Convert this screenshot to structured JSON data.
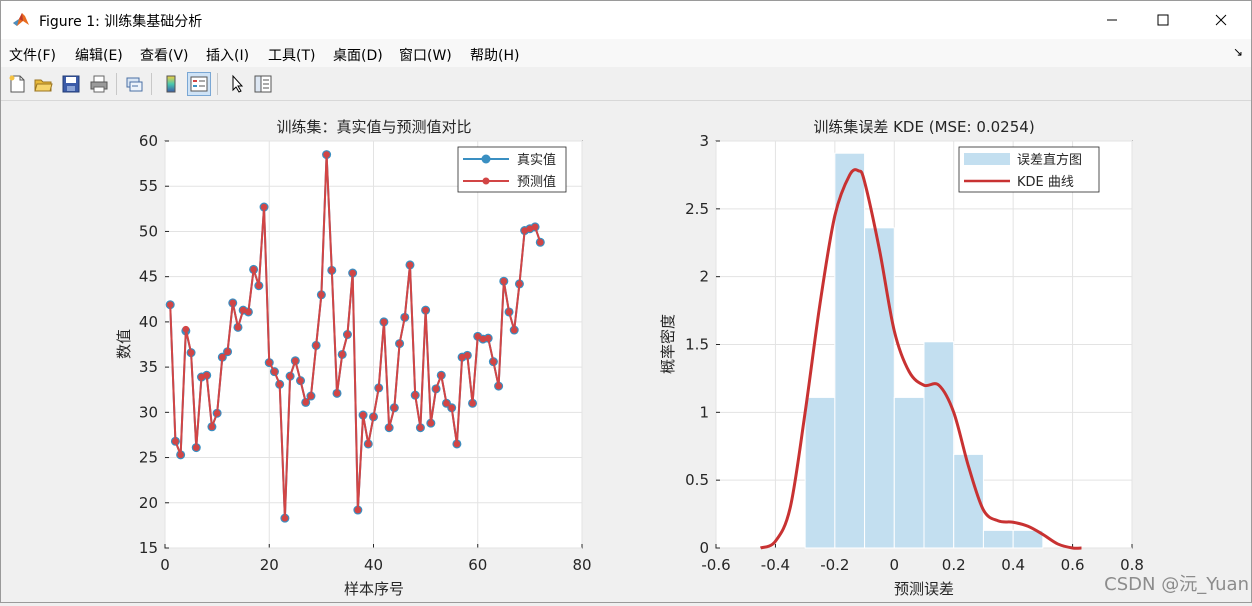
{
  "window": {
    "title": "Figure 1: 训练集基础分析",
    "minimize_glyph": "—",
    "maximize_glyph": "☐",
    "close_glyph": "✕"
  },
  "menu": {
    "items": [
      "文件(F)",
      "编辑(E)",
      "查看(V)",
      "插入(I)",
      "工具(T)",
      "桌面(D)",
      "窗口(W)",
      "帮助(H)"
    ],
    "arrow": "↘"
  },
  "toolbar": {
    "icons": [
      "new-figure-icon",
      "open-file-icon",
      "save-icon",
      "print-icon",
      "link-icon",
      "colorbar-icon",
      "legend-icon",
      "pointer-icon",
      "property-inspector-icon"
    ]
  },
  "colors": {
    "true_series": "#3a8fc2",
    "pred_series": "#d24545",
    "hist_fill": "#c3dff0",
    "kde_line": "#c83232"
  },
  "watermark": "CSDN @沅_Yuan",
  "chart_data": [
    {
      "type": "line",
      "title": "训练集：真实值与预测值对比",
      "xlabel": "样本序号",
      "ylabel": "数值",
      "xlim": [
        0,
        80
      ],
      "ylim": [
        15,
        60
      ],
      "xticks": [
        0,
        20,
        40,
        60,
        80
      ],
      "yticks": [
        15,
        20,
        25,
        30,
        35,
        40,
        45,
        50,
        55,
        60
      ],
      "grid": true,
      "legend_position": "top-right",
      "x": [
        1,
        2,
        3,
        4,
        5,
        6,
        7,
        8,
        9,
        10,
        11,
        12,
        13,
        14,
        15,
        16,
        17,
        18,
        19,
        20,
        21,
        22,
        23,
        24,
        25,
        26,
        27,
        28,
        29,
        30,
        31,
        32,
        33,
        34,
        35,
        36,
        37,
        38,
        39,
        40,
        41,
        42,
        43,
        44,
        45,
        46,
        47,
        48,
        49,
        50,
        51,
        52,
        53,
        54,
        55,
        56,
        57,
        58,
        59,
        60,
        61,
        62,
        63,
        64,
        65,
        66,
        67,
        68,
        69,
        70,
        71,
        72
      ],
      "series": [
        {
          "name": "真实值",
          "values": [
            41.9,
            26.8,
            25.3,
            39.0,
            36.6,
            26.1,
            33.9,
            34.1,
            28.4,
            29.9,
            36.1,
            36.7,
            42.1,
            39.4,
            41.3,
            41.1,
            45.8,
            44.0,
            52.7,
            35.5,
            34.5,
            33.1,
            18.3,
            34.0,
            35.7,
            33.5,
            31.1,
            31.8,
            37.4,
            43.0,
            58.5,
            45.7,
            32.1,
            36.4,
            38.6,
            45.4,
            19.2,
            29.7,
            26.5,
            29.5,
            32.7,
            40.0,
            28.3,
            30.5,
            37.6,
            40.5,
            46.3,
            31.9,
            28.3,
            41.3,
            28.8,
            32.6,
            34.1,
            31.0,
            30.5,
            26.5,
            36.1,
            36.3,
            31.0,
            38.4,
            38.1,
            38.2,
            35.6,
            32.9,
            44.5,
            41.1,
            39.1,
            44.2,
            50.1,
            50.3,
            50.5,
            48.8
          ]
        },
        {
          "name": "预测值",
          "values": [
            41.9,
            26.8,
            25.3,
            39.2,
            36.6,
            26.1,
            33.9,
            34.1,
            28.4,
            29.9,
            36.1,
            36.7,
            42.1,
            39.4,
            41.3,
            41.1,
            45.8,
            44.0,
            52.7,
            35.5,
            34.5,
            33.1,
            18.3,
            34.0,
            35.7,
            33.5,
            31.1,
            31.8,
            37.4,
            43.0,
            58.5,
            45.7,
            32.1,
            36.4,
            38.6,
            45.4,
            19.2,
            29.7,
            26.5,
            29.5,
            32.7,
            40.0,
            28.3,
            30.5,
            37.6,
            40.5,
            46.3,
            31.9,
            28.3,
            41.3,
            28.8,
            32.6,
            34.1,
            31.0,
            30.5,
            26.5,
            36.1,
            36.3,
            31.0,
            38.4,
            38.1,
            38.2,
            35.6,
            32.9,
            44.5,
            41.1,
            39.1,
            44.2,
            50.1,
            50.3,
            50.5,
            48.8
          ]
        }
      ]
    },
    {
      "type": "bar",
      "title": "训练集误差 KDE (MSE: 0.0254)",
      "xlabel": "预测误差",
      "ylabel": "概率密度",
      "xlim": [
        -0.6,
        0.8
      ],
      "ylim": [
        0,
        3
      ],
      "xticks": [
        -0.6,
        -0.4,
        -0.2,
        0,
        0.2,
        0.4,
        0.6,
        0.8
      ],
      "xtick_labels": [
        "-0.6",
        "-0.4",
        "-0.2",
        "0",
        "0.2",
        "0.4",
        "0.6",
        "0.8"
      ],
      "yticks": [
        0,
        0.5,
        1,
        1.5,
        2,
        2.5,
        3
      ],
      "ytick_labels": [
        "0",
        "0.5",
        "1",
        "1.5",
        "2",
        "2.5",
        "3"
      ],
      "grid": true,
      "legend_position": "top-right",
      "histogram": {
        "name": "误差直方图",
        "bin_edges": [
          -0.3,
          -0.2,
          -0.1,
          0.0,
          0.1,
          0.2,
          0.3,
          0.4,
          0.5
        ],
        "values": [
          1.11,
          2.91,
          2.36,
          1.11,
          1.52,
          0.69,
          0.13,
          0.13
        ]
      },
      "kde": {
        "name": "KDE 曲线",
        "x": [
          -0.45,
          -0.4,
          -0.35,
          -0.3,
          -0.25,
          -0.2,
          -0.15,
          -0.12,
          -0.1,
          -0.05,
          0.0,
          0.05,
          0.1,
          0.15,
          0.2,
          0.25,
          0.3,
          0.35,
          0.4,
          0.45,
          0.5,
          0.55,
          0.6,
          0.63
        ],
        "y": [
          0.0,
          0.05,
          0.3,
          1.0,
          1.8,
          2.45,
          2.75,
          2.78,
          2.7,
          2.2,
          1.6,
          1.3,
          1.2,
          1.2,
          1.0,
          0.6,
          0.28,
          0.2,
          0.19,
          0.16,
          0.1,
          0.03,
          0.0,
          0.0
        ]
      }
    }
  ]
}
